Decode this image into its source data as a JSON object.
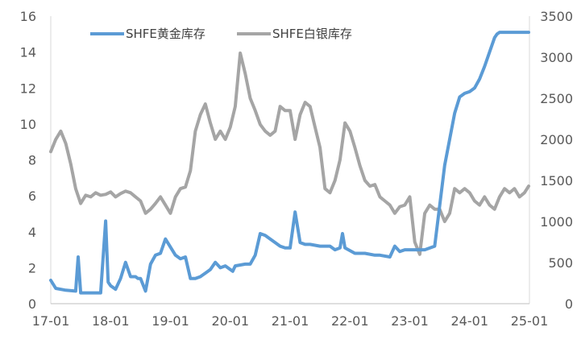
{
  "chart_data": {
    "type": "line",
    "title": "",
    "xlabel": "",
    "ylabel": "",
    "y2label": "",
    "x_tick_labels": [
      "17-01",
      "18-01",
      "19-01",
      "20-01",
      "21-01",
      "22-01",
      "23-01",
      "24-01",
      "25-01"
    ],
    "xlim": [
      "17-01",
      "25-01"
    ],
    "ylim": [
      0,
      16
    ],
    "y_ticks": [
      0,
      2,
      4,
      6,
      8,
      10,
      12,
      14,
      16
    ],
    "y2lim": [
      0,
      3500
    ],
    "y2_ticks": [
      0,
      500,
      1000,
      1500,
      2000,
      2500,
      3000,
      3500
    ],
    "grid": false,
    "legend_position": "top",
    "series": [
      {
        "name": "SHFE黄金库存",
        "axis": "left",
        "color": "#5b9bd5",
        "x": [
          "17-01",
          "17-02",
          "17-04",
          "17-06",
          "17-06",
          "17-07",
          "17-07",
          "17-09",
          "17-11",
          "17-12",
          "17-12",
          "18-01",
          "18-01",
          "18-02",
          "18-03",
          "18-04",
          "18-05",
          "18-06",
          "18-06",
          "18-07",
          "18-08",
          "18-09",
          "18-10",
          "18-11",
          "18-12",
          "19-02",
          "19-03",
          "19-04",
          "19-05",
          "19-06",
          "19-07",
          "19-08",
          "19-09",
          "19-10",
          "19-11",
          "19-12",
          "20-01",
          "20-01",
          "20-02",
          "20-04",
          "20-05",
          "20-06",
          "20-07",
          "20-08",
          "20-09",
          "20-10",
          "20-11",
          "20-12",
          "21-01",
          "21-02",
          "21-03",
          "21-04",
          "21-05",
          "21-07",
          "21-09",
          "21-10",
          "21-11",
          "21-11",
          "21-12",
          "22-02",
          "22-04",
          "22-06",
          "22-07",
          "22-09",
          "22-10",
          "22-11",
          "22-12",
          "23-01",
          "23-02",
          "23-04",
          "23-06",
          "23-08",
          "23-10",
          "23-11",
          "23-12",
          "24-01",
          "24-02",
          "24-03",
          "24-04",
          "24-05",
          "24-06",
          "24-06",
          "24-07",
          "24-08",
          "24-09",
          "24-10",
          "24-11",
          "24-12",
          "25-01"
        ],
        "y": [
          1.3,
          0.85,
          0.75,
          0.7,
          2.6,
          0.6,
          0.6,
          0.6,
          0.6,
          4.6,
          1.2,
          1.0,
          0.9,
          0.8,
          1.4,
          2.3,
          1.5,
          1.5,
          1.4,
          1.4,
          0.7,
          2.2,
          2.7,
          2.8,
          3.6,
          2.7,
          2.5,
          2.6,
          1.4,
          1.4,
          1.5,
          1.7,
          1.9,
          2.3,
          2.0,
          2.1,
          1.9,
          1.8,
          2.1,
          2.2,
          2.2,
          2.7,
          3.9,
          3.8,
          3.6,
          3.4,
          3.2,
          3.1,
          3.1,
          5.1,
          3.4,
          3.3,
          3.3,
          3.2,
          3.2,
          3.0,
          3.1,
          3.9,
          3.1,
          2.8,
          2.8,
          2.7,
          2.7,
          2.6,
          3.2,
          2.9,
          3.0,
          3.0,
          3.0,
          3.0,
          3.2,
          7.7,
          10.6,
          11.5,
          11.7,
          11.8,
          12.0,
          12.5,
          13.2,
          14.0,
          14.8,
          15.0,
          15.1,
          15.1,
          15.1,
          15.1,
          15.1,
          15.1,
          15.1
        ]
      },
      {
        "name": "SHFE白银库存",
        "axis": "right",
        "color": "#a5a5a5",
        "x": [
          "17-01",
          "17-02",
          "17-03",
          "17-04",
          "17-05",
          "17-06",
          "17-07",
          "17-08",
          "17-09",
          "17-10",
          "17-11",
          "17-12",
          "18-01",
          "18-02",
          "18-03",
          "18-04",
          "18-05",
          "18-06",
          "18-07",
          "18-08",
          "18-09",
          "18-10",
          "18-11",
          "18-12",
          "19-01",
          "19-02",
          "19-03",
          "19-04",
          "19-05",
          "19-06",
          "19-07",
          "19-08",
          "19-09",
          "19-10",
          "19-11",
          "19-12",
          "20-01",
          "20-02",
          "20-03",
          "20-04",
          "20-05",
          "20-06",
          "20-07",
          "20-08",
          "20-09",
          "20-10",
          "20-11",
          "20-12",
          "21-01",
          "21-02",
          "21-03",
          "21-04",
          "21-05",
          "21-06",
          "21-07",
          "21-08",
          "21-09",
          "21-10",
          "21-11",
          "21-12",
          "22-01",
          "22-02",
          "22-03",
          "22-04",
          "22-05",
          "22-06",
          "22-07",
          "22-08",
          "22-09",
          "22-10",
          "22-11",
          "22-12",
          "23-01",
          "23-02",
          "23-03",
          "23-04",
          "23-05",
          "23-06",
          "23-07",
          "23-08",
          "23-09",
          "23-10",
          "23-11",
          "23-12",
          "24-01",
          "24-02",
          "24-03",
          "24-04",
          "24-05",
          "24-06",
          "24-07",
          "24-08",
          "24-09",
          "24-10",
          "24-11",
          "24-12",
          "25-01"
        ],
        "y": [
          1850,
          2000,
          2100,
          1950,
          1700,
          1400,
          1220,
          1320,
          1300,
          1350,
          1320,
          1330,
          1360,
          1300,
          1340,
          1370,
          1350,
          1300,
          1250,
          1100,
          1150,
          1220,
          1300,
          1200,
          1100,
          1300,
          1400,
          1420,
          1620,
          2100,
          2300,
          2430,
          2200,
          2000,
          2100,
          2000,
          2150,
          2400,
          3050,
          2800,
          2500,
          2350,
          2180,
          2100,
          2050,
          2100,
          2400,
          2350,
          2350,
          2000,
          2300,
          2450,
          2400,
          2150,
          1900,
          1400,
          1350,
          1500,
          1750,
          2200,
          2100,
          1900,
          1680,
          1500,
          1430,
          1450,
          1300,
          1250,
          1200,
          1100,
          1180,
          1200,
          1300,
          750,
          600,
          1100,
          1200,
          1150,
          1150,
          1000,
          1100,
          1400,
          1350,
          1400,
          1350,
          1250,
          1200,
          1300,
          1200,
          1150,
          1300,
          1400,
          1350,
          1400,
          1300,
          1350,
          1430
        ]
      }
    ]
  }
}
